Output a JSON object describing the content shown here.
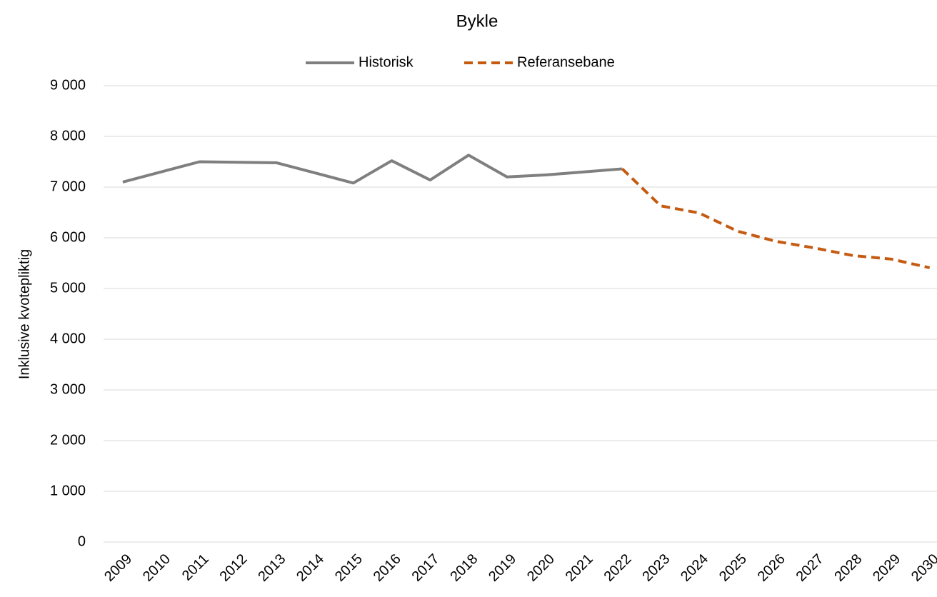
{
  "chart_data": {
    "type": "line",
    "title": "Bykle",
    "y_label": "Inklusive kvotepliktig",
    "categories": [
      "2009",
      "2010",
      "2011",
      "2012",
      "2013",
      "2014",
      "2015",
      "2016",
      "2017",
      "2018",
      "2019",
      "2020",
      "2021",
      "2022",
      "2023",
      "2024",
      "2025",
      "2026",
      "2027",
      "2028",
      "2029",
      "2030"
    ],
    "series": [
      {
        "name": "Historisk",
        "color": "#7f7f7f",
        "dash": false,
        "values": [
          7100,
          7300,
          7500,
          7490,
          7480,
          7280,
          7080,
          7520,
          7140,
          7630,
          7200,
          7240,
          7300,
          7360,
          null,
          null,
          null,
          null,
          null,
          null,
          null,
          null
        ]
      },
      {
        "name": "Referansebane",
        "color": "#c55a11",
        "dash": true,
        "values": [
          null,
          null,
          null,
          null,
          null,
          null,
          null,
          null,
          null,
          null,
          null,
          null,
          null,
          7360,
          6630,
          6490,
          6130,
          5930,
          5800,
          5650,
          5580,
          5410
        ]
      }
    ],
    "ylim": [
      0,
      9000
    ],
    "yticks": [
      0,
      {
        "value": 1000,
        "label": "1 000"
      },
      {
        "value": 2000,
        "label": "2 000"
      },
      {
        "value": 3000,
        "label": "3 000"
      },
      {
        "value": 4000,
        "label": "4 000"
      },
      {
        "value": 5000,
        "label": "5 000"
      },
      {
        "value": 6000,
        "label": "6 000"
      },
      {
        "value": 7000,
        "label": "7 000"
      },
      {
        "value": 8000,
        "label": "8 000"
      },
      {
        "value": 9000,
        "label": "9 000"
      }
    ],
    "grid": true,
    "legend": "top"
  }
}
